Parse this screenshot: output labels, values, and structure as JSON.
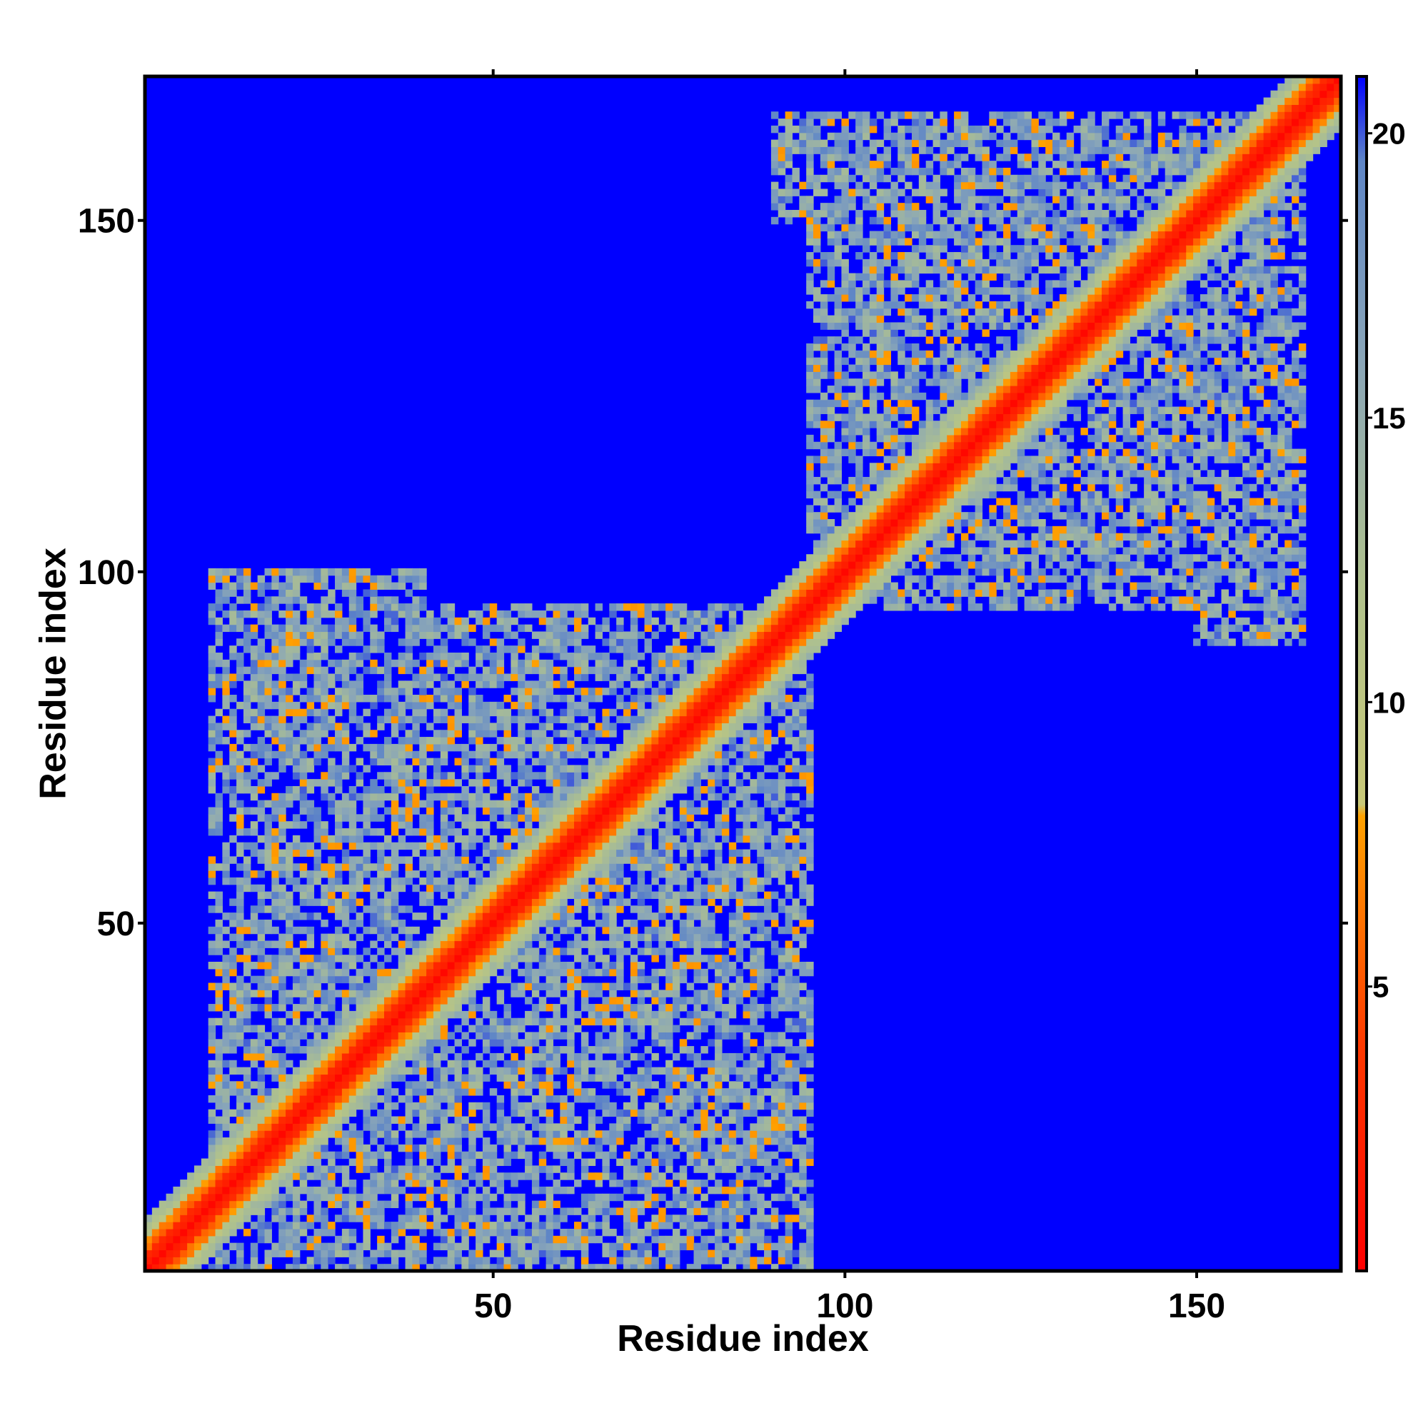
{
  "chart_data": {
    "type": "heatmap",
    "title": "",
    "xlabel": "Residue index",
    "ylabel": "Residue index",
    "xlim": [
      1,
      170
    ],
    "ylim": [
      1,
      170
    ],
    "x_ticks": [
      50,
      100,
      150
    ],
    "y_ticks": [
      50,
      100,
      150
    ],
    "x_tick_labels": [
      "50",
      "100",
      "150"
    ],
    "y_tick_labels": [
      "50",
      "100",
      "150"
    ],
    "colorbar": {
      "range": [
        0,
        21
      ],
      "ticks": [
        5,
        10,
        15,
        20
      ],
      "tick_labels": [
        "5",
        "10",
        "15",
        "20"
      ],
      "stops": [
        {
          "value": 0,
          "color": "#ff0000"
        },
        {
          "value": 4,
          "color": "#ff3a00"
        },
        {
          "value": 8,
          "color": "#ffa200"
        },
        {
          "value": 8.2,
          "color": "#c8c878"
        },
        {
          "value": 12,
          "color": "#b0c28c"
        },
        {
          "value": 16,
          "color": "#8aa6b8"
        },
        {
          "value": 19.5,
          "color": "#5f86c6"
        },
        {
          "value": 21,
          "color": "#0000ff"
        }
      ]
    },
    "background_color": "#0000ff",
    "diagonal_band": {
      "from": 1,
      "to": 170
    },
    "contact_blocks": [
      {
        "x": [
          10,
          95
        ],
        "y": [
          1,
          95
        ]
      },
      {
        "x": [
          95,
          165
        ],
        "y": [
          95,
          165
        ]
      },
      {
        "x": [
          10,
          40
        ],
        "y": [
          75,
          100
        ]
      },
      {
        "x": [
          75,
          95
        ],
        "y": [
          10,
          40
        ]
      },
      {
        "x": [
          90,
          120
        ],
        "y": [
          150,
          165
        ]
      },
      {
        "x": [
          150,
          165
        ],
        "y": [
          90,
          120
        ]
      }
    ]
  }
}
